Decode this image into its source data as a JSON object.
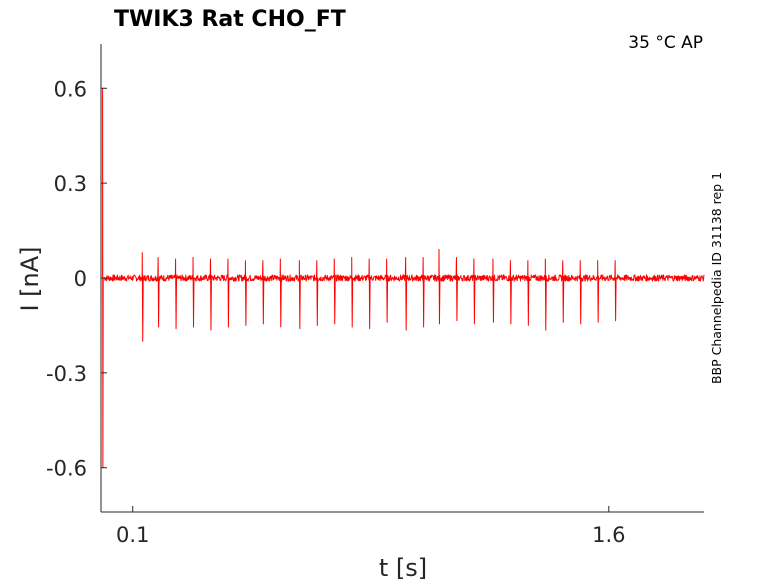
{
  "chart_data": {
    "type": "line",
    "title": "TWIK3  Rat  CHO_FT",
    "annotation": "35 °C  AP",
    "side_label": "BBP Channelpedia ID 31138 rep 1",
    "xlabel": "t [s]",
    "ylabel": "I [nA]",
    "xlim": [
      0.0,
      1.9
    ],
    "ylim": [
      -0.74,
      0.74
    ],
    "x_ticks": [
      0.1,
      1.6
    ],
    "x_tick_labels": [
      "0.1",
      "1.6"
    ],
    "y_ticks": [
      0.6,
      0.3,
      0,
      -0.3,
      -0.6
    ],
    "y_tick_labels": [
      "0.6",
      "0.3",
      "0",
      "-0.3",
      "-0.6"
    ],
    "grid": false,
    "series": [
      {
        "color": "#ff0000",
        "baseline": 0.0,
        "noise_amplitude": 0.01,
        "initial_transient": {
          "t": 0.005,
          "max": 0.6,
          "min": -0.6
        },
        "spikes": [
          {
            "t": 0.13,
            "peak": 0.08,
            "trough": -0.2
          },
          {
            "t": 0.18,
            "peak": 0.065,
            "trough": -0.155
          },
          {
            "t": 0.235,
            "peak": 0.06,
            "trough": -0.16
          },
          {
            "t": 0.29,
            "peak": 0.065,
            "trough": -0.155
          },
          {
            "t": 0.345,
            "peak": 0.06,
            "trough": -0.165
          },
          {
            "t": 0.4,
            "peak": 0.06,
            "trough": -0.155
          },
          {
            "t": 0.455,
            "peak": 0.055,
            "trough": -0.15
          },
          {
            "t": 0.51,
            "peak": 0.055,
            "trough": -0.145
          },
          {
            "t": 0.565,
            "peak": 0.06,
            "trough": -0.155
          },
          {
            "t": 0.625,
            "peak": 0.055,
            "trough": -0.16
          },
          {
            "t": 0.68,
            "peak": 0.055,
            "trough": -0.15
          },
          {
            "t": 0.735,
            "peak": 0.06,
            "trough": -0.145
          },
          {
            "t": 0.79,
            "peak": 0.065,
            "trough": -0.155
          },
          {
            "t": 0.845,
            "peak": 0.06,
            "trough": -0.16
          },
          {
            "t": 0.9,
            "peak": 0.06,
            "trough": -0.14
          },
          {
            "t": 0.96,
            "peak": 0.065,
            "trough": -0.165
          },
          {
            "t": 1.015,
            "peak": 0.065,
            "trough": -0.155
          },
          {
            "t": 1.065,
            "peak": 0.09,
            "trough": -0.145
          },
          {
            "t": 1.12,
            "peak": 0.065,
            "trough": -0.135
          },
          {
            "t": 1.175,
            "peak": 0.06,
            "trough": -0.145
          },
          {
            "t": 1.235,
            "peak": 0.06,
            "trough": -0.14
          },
          {
            "t": 1.29,
            "peak": 0.055,
            "trough": -0.145
          },
          {
            "t": 1.345,
            "peak": 0.055,
            "trough": -0.15
          },
          {
            "t": 1.4,
            "peak": 0.06,
            "trough": -0.165
          },
          {
            "t": 1.455,
            "peak": 0.055,
            "trough": -0.14
          },
          {
            "t": 1.51,
            "peak": 0.055,
            "trough": -0.145
          },
          {
            "t": 1.565,
            "peak": 0.055,
            "trough": -0.14
          },
          {
            "t": 1.62,
            "peak": 0.055,
            "trough": -0.135
          }
        ]
      }
    ]
  }
}
